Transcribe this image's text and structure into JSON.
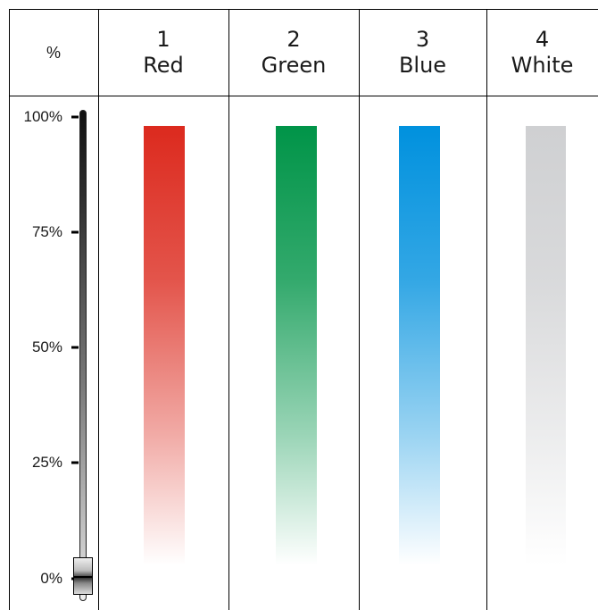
{
  "percent_header": "%",
  "scale": {
    "ticks": [
      {
        "label": "100%",
        "value": 100
      },
      {
        "label": "75%",
        "value": 75
      },
      {
        "label": "50%",
        "value": 50
      },
      {
        "label": "25%",
        "value": 25
      },
      {
        "label": "0%",
        "value": 0
      }
    ],
    "fader_value": 0
  },
  "channels": [
    {
      "number": "1",
      "name": "Red",
      "color": "#dc2a1e"
    },
    {
      "number": "2",
      "name": "Green",
      "color": "#009448"
    },
    {
      "number": "3",
      "name": "Blue",
      "color": "#0091de"
    },
    {
      "number": "4",
      "name": "White",
      "color": "#cfd0d2"
    }
  ]
}
